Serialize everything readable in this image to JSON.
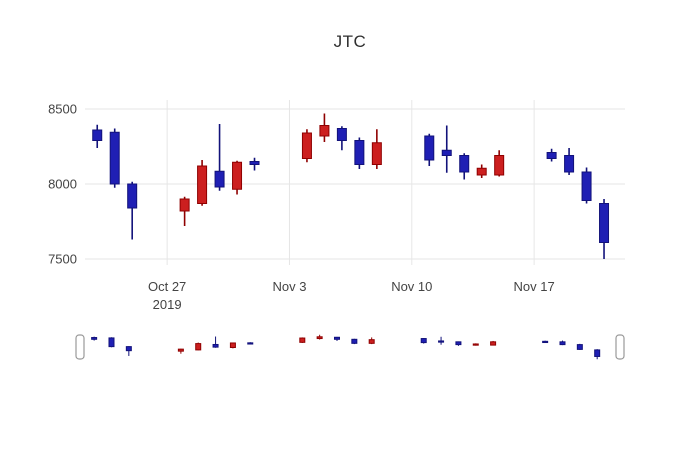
{
  "colors": {
    "increasing": "#cc1f1f",
    "increasing_line": "#8f0000",
    "decreasing": "#1f1fb4",
    "decreasing_line": "#12127a",
    "grid": "#e6e6e6",
    "axis_text": "#444444",
    "handle_fill": "#ffffff",
    "handle_stroke": "#999999",
    "background": "#ffffff"
  },
  "chart_data": {
    "type": "candlestick",
    "title": "JTC",
    "x": [
      "2019-10-23",
      "2019-10-24",
      "2019-10-25",
      "2019-10-28",
      "2019-10-29",
      "2019-10-30",
      "2019-10-31",
      "2019-11-01",
      "2019-11-04",
      "2019-11-05",
      "2019-11-06",
      "2019-11-07",
      "2019-11-08",
      "2019-11-11",
      "2019-11-12",
      "2019-11-13",
      "2019-11-14",
      "2019-11-15",
      "2019-11-18",
      "2019-11-19",
      "2019-11-20",
      "2019-11-21"
    ],
    "open": [
      8360,
      8345,
      8000,
      7820,
      7870,
      8085,
      7965,
      8150,
      8170,
      8320,
      8370,
      8290,
      8130,
      8320,
      8225,
      8190,
      8060,
      8060,
      8210,
      8190,
      8080,
      7870
    ],
    "high": [
      8395,
      8370,
      8015,
      7915,
      8160,
      8400,
      8155,
      8175,
      8365,
      8470,
      8385,
      8310,
      8365,
      8335,
      8390,
      8205,
      8130,
      8225,
      8235,
      8240,
      8110,
      7900
    ],
    "low": [
      8240,
      7975,
      7630,
      7720,
      7855,
      7955,
      7930,
      8090,
      8145,
      8280,
      8225,
      8100,
      8100,
      8120,
      8075,
      8030,
      8040,
      8050,
      8150,
      8060,
      7870,
      7500
    ],
    "close": [
      8290,
      8000,
      7840,
      7900,
      8120,
      7980,
      8145,
      8130,
      8340,
      8390,
      8290,
      8130,
      8275,
      8160,
      8190,
      8080,
      8105,
      8190,
      8170,
      8080,
      7890,
      7610
    ],
    "yticks": [
      7500,
      8000,
      8500
    ],
    "ylim": [
      7460,
      8560
    ],
    "xticks": [
      {
        "date": "2019-10-27",
        "label": "Oct 27",
        "sublabel": "2019"
      },
      {
        "date": "2019-11-03",
        "label": "Nov 3",
        "sublabel": ""
      },
      {
        "date": "2019-11-10",
        "label": "Nov 10",
        "sublabel": ""
      },
      {
        "date": "2019-11-17",
        "label": "Nov 17",
        "sublabel": ""
      }
    ],
    "legend": "off",
    "grid": "on",
    "rangeslider": true
  }
}
